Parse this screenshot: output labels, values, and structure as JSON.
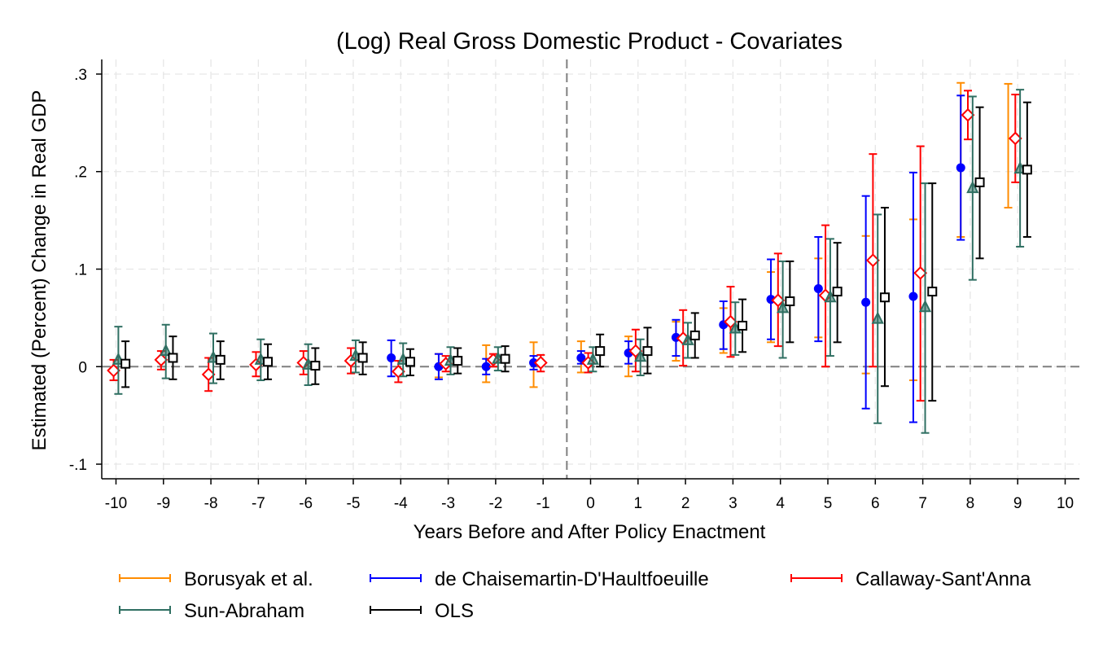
{
  "chart_data": {
    "type": "scatter",
    "subtype": "event-study coefficient plot with confidence intervals",
    "title": "(Log) Real Gross Domestic Product - Covariates",
    "xlabel": "Years Before and After Policy Enactment",
    "ylabel": "Estimated (Percent) Change in Real GDP",
    "xlim": [
      -10.3,
      10.3
    ],
    "ylim": [
      -0.115,
      0.315
    ],
    "x_ticks": [
      -10,
      -9,
      -8,
      -7,
      -6,
      -5,
      -4,
      -3,
      -2,
      -1,
      0,
      1,
      2,
      3,
      4,
      5,
      6,
      7,
      8,
      9,
      10
    ],
    "x_tick_labels": [
      "-10",
      "-9",
      "-8",
      "-7",
      "-6",
      "-5",
      "-4",
      "-3",
      "-2",
      "-1",
      "0",
      "1",
      "2",
      "3",
      "4",
      "5",
      "6",
      "7",
      "8",
      "9",
      "10"
    ],
    "y_ticks": [
      -0.1,
      0,
      0.1,
      0.2,
      0.3
    ],
    "y_tick_labels": [
      "-.1",
      "0",
      ".1",
      ".2",
      ".3"
    ],
    "grid": true,
    "reference_lines": {
      "horizontal_y": 0,
      "vertical_x": -0.5
    },
    "legend_position": "bottom",
    "series": [
      {
        "name": "Borusyak et al.",
        "color": "#ff8c00",
        "marker": "none",
        "offset": -0.2,
        "points": [
          {
            "x": -3,
            "y": 0.001,
            "lo": -0.011,
            "hi": 0.013
          },
          {
            "x": -2,
            "y": 0.003,
            "lo": -0.016,
            "hi": 0.022
          },
          {
            "x": -1,
            "y": 0.002,
            "lo": -0.021,
            "hi": 0.025
          },
          {
            "x": 0,
            "y": 0.01,
            "lo": -0.006,
            "hi": 0.026
          },
          {
            "x": 1,
            "y": 0.011,
            "lo": -0.01,
            "hi": 0.031
          },
          {
            "x": 2,
            "y": 0.026,
            "lo": 0.006,
            "hi": 0.046
          },
          {
            "x": 3,
            "y": 0.037,
            "lo": 0.014,
            "hi": 0.06
          },
          {
            "x": 4,
            "y": 0.061,
            "lo": 0.025,
            "hi": 0.097
          },
          {
            "x": 5,
            "y": 0.07,
            "lo": 0.03,
            "hi": 0.111
          },
          {
            "x": 6,
            "y": 0.063,
            "lo": -0.007,
            "hi": 0.134
          },
          {
            "x": 7,
            "y": 0.068,
            "lo": -0.014,
            "hi": 0.151
          },
          {
            "x": 8,
            "y": 0.212,
            "lo": 0.133,
            "hi": 0.291
          },
          {
            "x": 9,
            "y": 0.226,
            "lo": 0.163,
            "hi": 0.29
          }
        ]
      },
      {
        "name": "de Chaisemartin-D'Haultfoeuille",
        "color": "#0000ff",
        "marker": "circle",
        "offset": -0.2,
        "points": [
          {
            "x": -4,
            "y": 0.009,
            "lo": -0.01,
            "hi": 0.027
          },
          {
            "x": -3,
            "y": 0.0,
            "lo": -0.013,
            "hi": 0.013
          },
          {
            "x": -2,
            "y": 0.0,
            "lo": -0.008,
            "hi": 0.008
          },
          {
            "x": -1,
            "y": 0.004,
            "lo": -0.003,
            "hi": 0.011
          },
          {
            "x": 0,
            "y": 0.009,
            "lo": 0.003,
            "hi": 0.016
          },
          {
            "x": 1,
            "y": 0.014,
            "lo": 0.003,
            "hi": 0.026
          },
          {
            "x": 2,
            "y": 0.03,
            "lo": 0.011,
            "hi": 0.048
          },
          {
            "x": 3,
            "y": 0.043,
            "lo": 0.018,
            "hi": 0.067
          },
          {
            "x": 4,
            "y": 0.069,
            "lo": 0.028,
            "hi": 0.11
          },
          {
            "x": 5,
            "y": 0.08,
            "lo": 0.026,
            "hi": 0.133
          },
          {
            "x": 6,
            "y": 0.066,
            "lo": -0.043,
            "hi": 0.175
          },
          {
            "x": 7,
            "y": 0.072,
            "lo": -0.057,
            "hi": 0.199
          },
          {
            "x": 8,
            "y": 0.204,
            "lo": 0.13,
            "hi": 0.278
          }
        ]
      },
      {
        "name": "Callaway-Sant'Anna",
        "color": "#ff0000",
        "marker": "diamond-hollow",
        "offset": -0.05,
        "points": [
          {
            "x": -10,
            "y": -0.004,
            "lo": -0.014,
            "hi": 0.007
          },
          {
            "x": -9,
            "y": 0.007,
            "lo": -0.003,
            "hi": 0.016
          },
          {
            "x": -8,
            "y": -0.008,
            "lo": -0.025,
            "hi": 0.009
          },
          {
            "x": -7,
            "y": 0.002,
            "lo": -0.01,
            "hi": 0.015
          },
          {
            "x": -6,
            "y": 0.004,
            "lo": -0.008,
            "hi": 0.016
          },
          {
            "x": -5,
            "y": 0.006,
            "lo": -0.007,
            "hi": 0.019
          },
          {
            "x": -4,
            "y": -0.005,
            "lo": -0.016,
            "hi": 0.006
          },
          {
            "x": -3,
            "y": 0.003,
            "lo": -0.005,
            "hi": 0.011
          },
          {
            "x": -2,
            "y": 0.007,
            "lo": 0.0,
            "hi": 0.013
          },
          {
            "x": -1,
            "y": 0.004,
            "lo": -0.005,
            "hi": 0.012
          },
          {
            "x": 0,
            "y": 0.004,
            "lo": -0.006,
            "hi": 0.014
          },
          {
            "x": 1,
            "y": 0.016,
            "lo": -0.005,
            "hi": 0.038
          },
          {
            "x": 2,
            "y": 0.029,
            "lo": 0.001,
            "hi": 0.058
          },
          {
            "x": 3,
            "y": 0.046,
            "lo": 0.01,
            "hi": 0.082
          },
          {
            "x": 4,
            "y": 0.068,
            "lo": 0.021,
            "hi": 0.116
          },
          {
            "x": 5,
            "y": 0.073,
            "lo": 0.0,
            "hi": 0.145
          },
          {
            "x": 6,
            "y": 0.109,
            "lo": 0.0,
            "hi": 0.218
          },
          {
            "x": 7,
            "y": 0.096,
            "lo": -0.035,
            "hi": 0.226
          },
          {
            "x": 8,
            "y": 0.258,
            "lo": 0.233,
            "hi": 0.283
          },
          {
            "x": 9,
            "y": 0.234,
            "lo": 0.189,
            "hi": 0.279
          }
        ]
      },
      {
        "name": "Sun-Abraham",
        "color": "#2f6f62",
        "marker": "triangle",
        "offset": 0.05,
        "points": [
          {
            "x": -10,
            "y": 0.007,
            "lo": -0.028,
            "hi": 0.041
          },
          {
            "x": -9,
            "y": 0.016,
            "lo": -0.012,
            "hi": 0.043
          },
          {
            "x": -8,
            "y": 0.009,
            "lo": -0.017,
            "hi": 0.034
          },
          {
            "x": -7,
            "y": 0.007,
            "lo": -0.014,
            "hi": 0.028
          },
          {
            "x": -6,
            "y": 0.002,
            "lo": -0.019,
            "hi": 0.023
          },
          {
            "x": -5,
            "y": 0.011,
            "lo": -0.006,
            "hi": 0.027
          },
          {
            "x": -4,
            "y": 0.007,
            "lo": -0.01,
            "hi": 0.024
          },
          {
            "x": -3,
            "y": 0.006,
            "lo": -0.008,
            "hi": 0.02
          },
          {
            "x": -2,
            "y": 0.008,
            "lo": -0.004,
            "hi": 0.02
          },
          {
            "x": 0,
            "y": 0.007,
            "lo": -0.005,
            "hi": 0.02
          },
          {
            "x": 1,
            "y": 0.01,
            "lo": -0.009,
            "hi": 0.028
          },
          {
            "x": 2,
            "y": 0.027,
            "lo": 0.009,
            "hi": 0.045
          },
          {
            "x": 3,
            "y": 0.039,
            "lo": 0.012,
            "hi": 0.066
          },
          {
            "x": 4,
            "y": 0.06,
            "lo": 0.009,
            "hi": 0.108
          },
          {
            "x": 5,
            "y": 0.071,
            "lo": 0.011,
            "hi": 0.131
          },
          {
            "x": 6,
            "y": 0.049,
            "lo": -0.058,
            "hi": 0.156
          },
          {
            "x": 7,
            "y": 0.061,
            "lo": -0.068,
            "hi": 0.188
          },
          {
            "x": 8,
            "y": 0.183,
            "lo": 0.089,
            "hi": 0.277
          },
          {
            "x": 9,
            "y": 0.203,
            "lo": 0.123,
            "hi": 0.284
          }
        ]
      },
      {
        "name": "OLS",
        "color": "#000000",
        "marker": "square-hollow",
        "offset": 0.2,
        "points": [
          {
            "x": -10,
            "y": 0.003,
            "lo": -0.021,
            "hi": 0.026
          },
          {
            "x": -9,
            "y": 0.009,
            "lo": -0.013,
            "hi": 0.031
          },
          {
            "x": -8,
            "y": 0.007,
            "lo": -0.013,
            "hi": 0.026
          },
          {
            "x": -7,
            "y": 0.005,
            "lo": -0.013,
            "hi": 0.023
          },
          {
            "x": -6,
            "y": 0.001,
            "lo": -0.018,
            "hi": 0.019
          },
          {
            "x": -5,
            "y": 0.009,
            "lo": -0.008,
            "hi": 0.025
          },
          {
            "x": -4,
            "y": 0.005,
            "lo": -0.009,
            "hi": 0.018
          },
          {
            "x": -3,
            "y": 0.006,
            "lo": -0.007,
            "hi": 0.019
          },
          {
            "x": -2,
            "y": 0.008,
            "lo": -0.005,
            "hi": 0.021
          },
          {
            "x": 0,
            "y": 0.016,
            "lo": 0.0,
            "hi": 0.033
          },
          {
            "x": 1,
            "y": 0.016,
            "lo": -0.007,
            "hi": 0.04
          },
          {
            "x": 2,
            "y": 0.032,
            "lo": 0.009,
            "hi": 0.055
          },
          {
            "x": 3,
            "y": 0.042,
            "lo": 0.015,
            "hi": 0.069
          },
          {
            "x": 4,
            "y": 0.067,
            "lo": 0.025,
            "hi": 0.108
          },
          {
            "x": 5,
            "y": 0.077,
            "lo": 0.025,
            "hi": 0.127
          },
          {
            "x": 6,
            "y": 0.071,
            "lo": -0.02,
            "hi": 0.163
          },
          {
            "x": 7,
            "y": 0.077,
            "lo": -0.035,
            "hi": 0.188
          },
          {
            "x": 8,
            "y": 0.189,
            "lo": 0.111,
            "hi": 0.266
          },
          {
            "x": 9,
            "y": 0.202,
            "lo": 0.133,
            "hi": 0.271
          }
        ]
      }
    ]
  },
  "legend_rows": [
    [
      "Borusyak et al.",
      "de Chaisemartin-D'Haultfoeuille",
      "Callaway-Sant'Anna"
    ],
    [
      "Sun-Abraham",
      "OLS"
    ]
  ]
}
